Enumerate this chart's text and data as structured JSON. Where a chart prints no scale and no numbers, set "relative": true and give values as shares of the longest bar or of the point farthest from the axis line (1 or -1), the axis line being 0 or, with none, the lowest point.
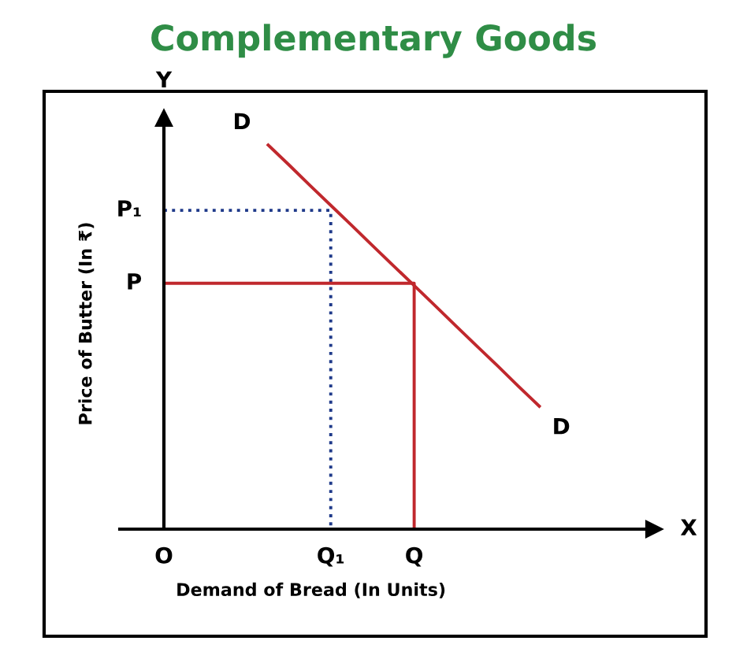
{
  "chart_data": {
    "type": "line",
    "title": "Complementary Goods",
    "xlabel": "Demand of Bread (In Units)",
    "ylabel": "Price of Butter (In ₹)",
    "relative": true,
    "categories": [
      "O",
      null,
      null,
      null,
      null,
      null,
      null,
      null,
      "Q₁",
      null,
      null,
      null,
      "Q",
      null,
      null,
      null,
      null,
      null,
      null,
      null,
      null,
      null,
      null
    ],
    "series": [
      {
        "values": [
          null,
          null,
          null,
          null,
          null,
          1,
          0.948,
          0.895,
          0.843,
          0.791,
          0.738,
          0.686,
          0.634,
          0.582,
          0.529,
          0.477,
          0.425,
          0.372,
          0.32,
          null,
          null,
          null,
          null
        ],
        "color": "#c0282d",
        "line_style": "solid"
      },
      {
        "type": "step",
        "values": [
          0.83,
          0.83,
          0.83,
          0.83,
          0.83,
          0.83,
          0.83,
          0.83,
          0,
          null,
          null,
          null,
          null,
          null,
          null,
          null,
          null,
          null,
          null,
          null,
          null,
          null,
          null
        ],
        "color": "#1f3a8a",
        "line_style": "dotted"
      },
      {
        "type": "step",
        "values": [
          0.64,
          0.64,
          0.64,
          0.64,
          0.64,
          0.64,
          0.64,
          0.64,
          0.64,
          0.64,
          0.64,
          0.64,
          0,
          null,
          null,
          null,
          null,
          null,
          null,
          null,
          null,
          null,
          null
        ],
        "color": "#c0282d",
        "line_style": "solid"
      }
    ],
    "annotations": [
      "D",
      "D",
      "X",
      "Y",
      "P₁",
      "P"
    ],
    "marker": "none"
  }
}
